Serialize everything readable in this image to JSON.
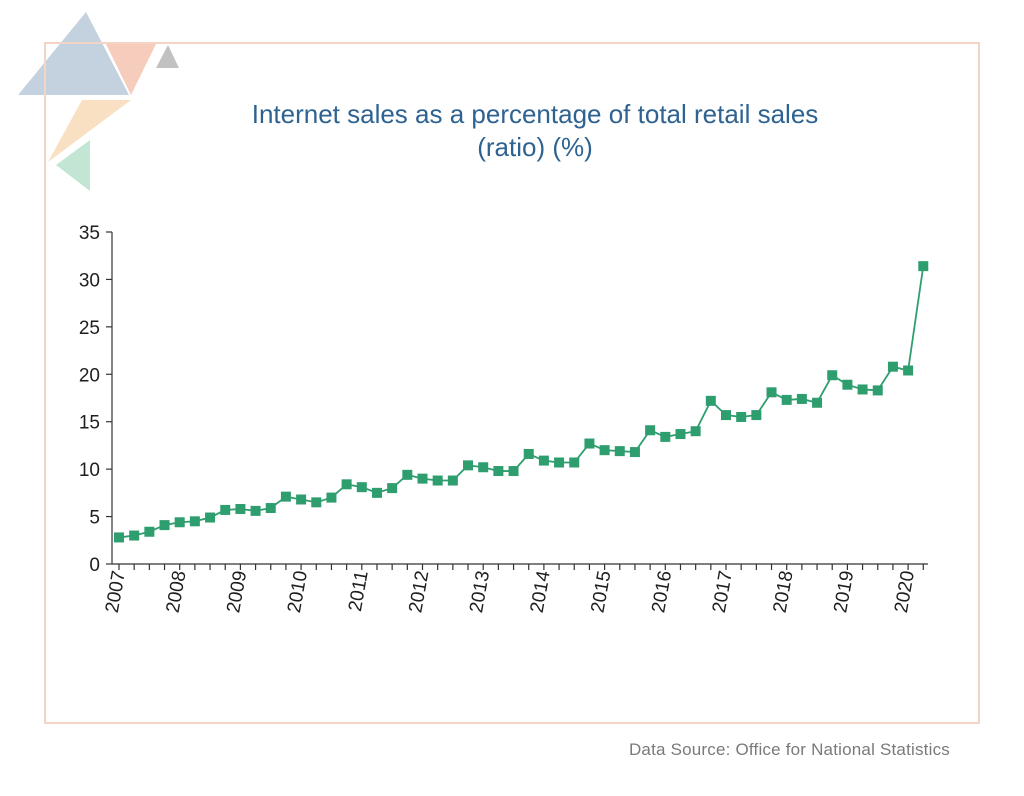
{
  "colors": {
    "series": "#2f9e6f",
    "title": "#2e6391",
    "frame": "#f4d4c4",
    "axis": "#333333",
    "source": "#7a7a7a"
  },
  "logo_icon": "triangle-cluster-logo",
  "source_text": "Data Source: Office for National Statistics",
  "chart_data": {
    "type": "line",
    "title": "Internet sales as a percentage of total retail sales (ratio) (%)",
    "title_lines": [
      "Internet sales as a percentage of total retail sales",
      "(ratio) (%)"
    ],
    "xlabel": "",
    "ylabel": "",
    "ylim": [
      0,
      35
    ],
    "yticks": [
      0,
      5,
      10,
      15,
      20,
      25,
      30,
      35
    ],
    "xtick_labels": [
      "2007",
      "2008",
      "2009",
      "2010",
      "2011",
      "2012",
      "2013",
      "2014",
      "2015",
      "2016",
      "2017",
      "2018",
      "2019",
      "2020"
    ],
    "grid": false,
    "marker": "square",
    "series": [
      {
        "x_start_year": 2007,
        "periods_per_year": 4,
        "values": [
          2.8,
          3.0,
          3.4,
          4.1,
          4.4,
          4.5,
          4.9,
          5.7,
          5.8,
          5.6,
          5.9,
          7.1,
          6.8,
          6.5,
          7.0,
          8.4,
          8.1,
          7.5,
          8.0,
          9.4,
          9.0,
          8.8,
          8.8,
          10.4,
          10.2,
          9.8,
          9.8,
          11.6,
          10.9,
          10.7,
          10.7,
          12.7,
          12.0,
          11.9,
          11.8,
          14.1,
          13.4,
          13.7,
          14.0,
          17.2,
          15.7,
          15.5,
          15.7,
          18.1,
          17.3,
          17.4,
          17.0,
          19.9,
          18.9,
          18.4,
          18.3,
          20.8,
          20.4,
          31.4
        ]
      }
    ]
  }
}
